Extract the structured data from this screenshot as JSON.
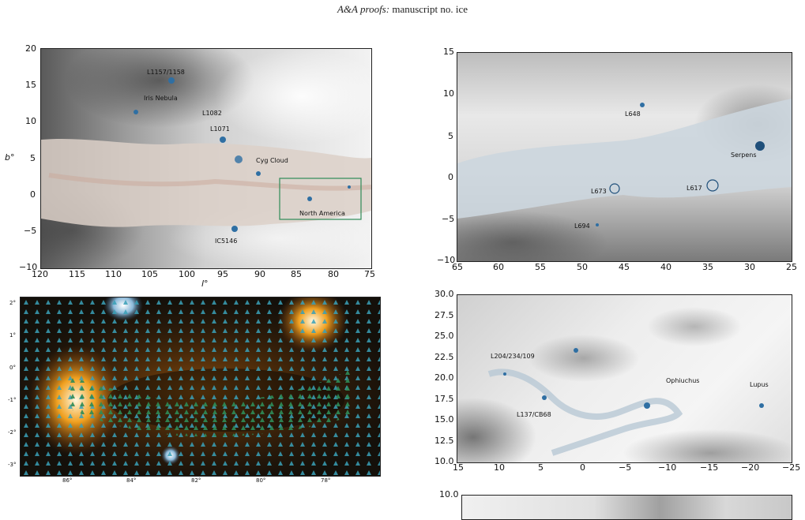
{
  "header": {
    "italic": "A&A proofs:",
    "rest": " manuscript no. ice"
  },
  "panels": {
    "top_left": {
      "xticks": [
        "120",
        "115",
        "110",
        "105",
        "100",
        "95",
        "90",
        "85",
        "80",
        "75"
      ],
      "yticks": [
        "20",
        "15",
        "10",
        "5",
        "0",
        "−5",
        "−10"
      ],
      "xlabel": "l°",
      "ylabel": "b°",
      "labels": [
        "L1157/1158",
        "Iris Nebula",
        "L1082",
        "L1071",
        "Cyg Cloud",
        "North America",
        "IC5146"
      ]
    },
    "top_right": {
      "xticks": [
        "65",
        "60",
        "55",
        "50",
        "45",
        "40",
        "35",
        "30",
        "25"
      ],
      "yticks": [
        "15",
        "10",
        "5",
        "0",
        "−5",
        "−10"
      ],
      "labels": [
        "L648",
        "Serpens",
        "L673",
        "L617",
        "L694"
      ]
    },
    "photo": {
      "xticks": [
        "86°",
        "84°",
        "82°",
        "80°",
        "78°"
      ],
      "yticks": [
        "2°",
        "1°",
        "0°",
        "-1°",
        "-2°",
        "-3°"
      ]
    },
    "mid_right": {
      "xticks": [
        "15",
        "10",
        "5",
        "0",
        "−5",
        "−10",
        "−15",
        "−20",
        "−25"
      ],
      "yticks": [
        "30.0",
        "27.5",
        "25.0",
        "22.5",
        "20.0",
        "17.5",
        "15.0",
        "12.5",
        "10.0"
      ],
      "labels": [
        "L204/234/109",
        "Ophiuchus",
        "Lupus",
        "L137/CB68"
      ]
    },
    "bottom_right": {
      "yticks": [
        "10.0"
      ]
    }
  },
  "colors": {
    "band": "#d9b8a8",
    "dust": "#2f6fa3",
    "box": "#2e8b57"
  }
}
